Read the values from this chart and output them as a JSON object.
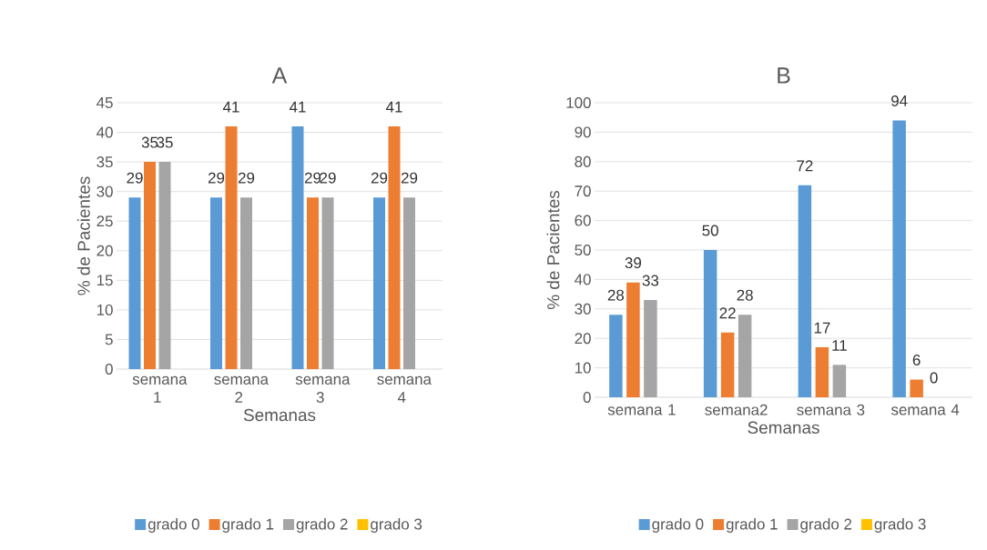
{
  "chart_data": [
    {
      "type": "bar",
      "title": "A",
      "xlabel": "Semanas",
      "ylabel": "% de Pacientes",
      "categories": [
        "semana 1",
        "semana 2",
        "semana 3",
        "semana 4"
      ],
      "series": [
        {
          "name": "grado 0",
          "color": "#5b9bd5",
          "values": [
            29,
            29,
            41,
            29
          ]
        },
        {
          "name": "grado 1",
          "color": "#ed7d31",
          "values": [
            35,
            41,
            29,
            41
          ]
        },
        {
          "name": "grado 2",
          "color": "#a5a5a5",
          "values": [
            35,
            29,
            29,
            29
          ]
        },
        {
          "name": "grado 3",
          "color": "#ffc000",
          "values": [
            null,
            null,
            null,
            null
          ]
        }
      ],
      "ylim": [
        0,
        45
      ],
      "yticks": [
        0,
        5,
        10,
        15,
        20,
        25,
        30,
        35,
        40,
        45
      ],
      "grid": "y",
      "legend": "bottom",
      "data_labels": true
    },
    {
      "type": "bar",
      "title": "B",
      "xlabel": "Semanas",
      "ylabel": "% de Pacientes",
      "categories": [
        "semana 1",
        "semana2",
        "semana 3",
        "semana 4"
      ],
      "series": [
        {
          "name": "grado 0",
          "color": "#5b9bd5",
          "values": [
            28,
            50,
            72,
            94
          ]
        },
        {
          "name": "grado 1",
          "color": "#ed7d31",
          "values": [
            39,
            22,
            17,
            6
          ]
        },
        {
          "name": "grado 2",
          "color": "#a5a5a5",
          "values": [
            33,
            28,
            11,
            0
          ]
        },
        {
          "name": "grado 3",
          "color": "#ffc000",
          "values": [
            null,
            null,
            null,
            null
          ]
        }
      ],
      "ylim": [
        0,
        100
      ],
      "yticks": [
        0,
        10,
        20,
        30,
        40,
        50,
        60,
        70,
        80,
        90,
        100
      ],
      "grid": "y",
      "legend": "bottom",
      "data_labels": true
    }
  ]
}
